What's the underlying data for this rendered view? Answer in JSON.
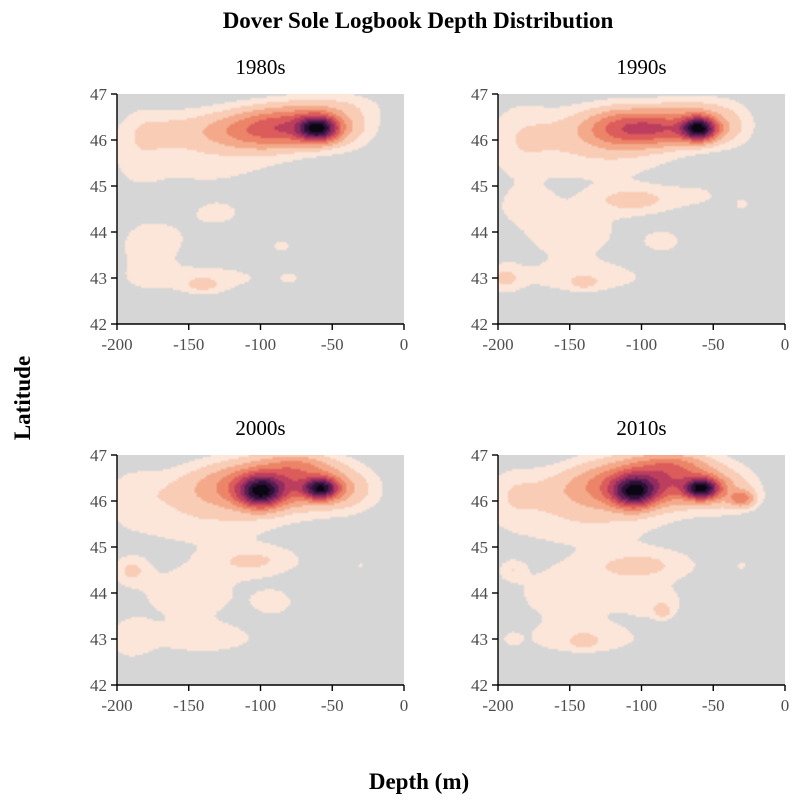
{
  "chart_data": {
    "type": "heatmap",
    "title": "Dover Sole Logbook Depth Distribution",
    "xlabel": "Depth (m)",
    "ylabel": "Latitude",
    "xlim": [
      -200,
      0
    ],
    "ylim": [
      42,
      47
    ],
    "x_ticks": [
      "-200",
      "-150",
      "-100",
      "-50",
      "0"
    ],
    "y_ticks": [
      "42",
      "43",
      "44",
      "45",
      "46",
      "47"
    ],
    "background_color": "#d6d6d6",
    "color_levels": [
      "#fce6da",
      "#f8ccb5",
      "#f4a98a",
      "#ec8468",
      "#dc5c5c",
      "#bc3e5e",
      "#902c60",
      "#5a1e54",
      "#2c1038",
      "#0a0612"
    ],
    "panels": [
      {
        "title": "1980s",
        "blobs": [
          {
            "x": -60,
            "y": 46.25,
            "sx": 9,
            "sy": 0.18,
            "a": 1.0
          },
          {
            "x": -75,
            "y": 46.3,
            "sx": 22,
            "sy": 0.28,
            "a": 0.45
          },
          {
            "x": -105,
            "y": 46.2,
            "sx": 22,
            "sy": 0.3,
            "a": 0.3
          },
          {
            "x": -145,
            "y": 46.2,
            "sx": 22,
            "sy": 0.3,
            "a": 0.1
          },
          {
            "x": -175,
            "y": 46.2,
            "sx": 15,
            "sy": 0.3,
            "a": 0.06
          },
          {
            "x": -185,
            "y": 45.8,
            "sx": 12,
            "sy": 0.6,
            "a": 0.05
          },
          {
            "x": -40,
            "y": 46.3,
            "sx": 15,
            "sy": 0.35,
            "a": 0.08
          },
          {
            "x": -50,
            "y": 46.75,
            "sx": 25,
            "sy": 0.2,
            "a": 0.06
          },
          {
            "x": -140,
            "y": 45.5,
            "sx": 40,
            "sy": 0.4,
            "a": 0.06
          },
          {
            "x": -130,
            "y": 44.4,
            "sx": 20,
            "sy": 0.3,
            "a": 0.05
          },
          {
            "x": -170,
            "y": 43.8,
            "sx": 18,
            "sy": 0.3,
            "a": 0.05
          },
          {
            "x": -140,
            "y": 43.0,
            "sx": 40,
            "sy": 0.25,
            "a": 0.06
          },
          {
            "x": -140,
            "y": 42.85,
            "sx": 9,
            "sy": 0.12,
            "a": 0.1
          },
          {
            "x": -180,
            "y": 43.5,
            "sx": 12,
            "sy": 0.5,
            "a": 0.05
          },
          {
            "x": -85,
            "y": 43.7,
            "sx": 8,
            "sy": 0.15,
            "a": 0.05
          },
          {
            "x": -80,
            "y": 43.0,
            "sx": 5,
            "sy": 0.1,
            "a": 0.04
          }
        ]
      },
      {
        "title": "1990s",
        "blobs": [
          {
            "x": -60,
            "y": 46.25,
            "sx": 8,
            "sy": 0.17,
            "a": 1.0
          },
          {
            "x": -85,
            "y": 46.25,
            "sx": 22,
            "sy": 0.25,
            "a": 0.45
          },
          {
            "x": -115,
            "y": 46.25,
            "sx": 18,
            "sy": 0.3,
            "a": 0.3
          },
          {
            "x": -150,
            "y": 46.2,
            "sx": 25,
            "sy": 0.35,
            "a": 0.08
          },
          {
            "x": -185,
            "y": 46.0,
            "sx": 15,
            "sy": 0.6,
            "a": 0.06
          },
          {
            "x": -40,
            "y": 46.3,
            "sx": 12,
            "sy": 0.3,
            "a": 0.1
          },
          {
            "x": -65,
            "y": 46.7,
            "sx": 20,
            "sy": 0.2,
            "a": 0.08
          },
          {
            "x": -130,
            "y": 45.6,
            "sx": 40,
            "sy": 0.4,
            "a": 0.06
          },
          {
            "x": -105,
            "y": 44.7,
            "sx": 20,
            "sy": 0.2,
            "a": 0.12
          },
          {
            "x": -180,
            "y": 44.6,
            "sx": 12,
            "sy": 0.25,
            "a": 0.07
          },
          {
            "x": -150,
            "y": 44.0,
            "sx": 30,
            "sy": 0.5,
            "a": 0.06
          },
          {
            "x": -195,
            "y": 43.0,
            "sx": 8,
            "sy": 0.2,
            "a": 0.1
          },
          {
            "x": -140,
            "y": 43.0,
            "sx": 35,
            "sy": 0.25,
            "a": 0.06
          },
          {
            "x": -140,
            "y": 42.9,
            "sx": 7,
            "sy": 0.1,
            "a": 0.08
          },
          {
            "x": -85,
            "y": 43.8,
            "sx": 10,
            "sy": 0.18,
            "a": 0.06
          },
          {
            "x": -30,
            "y": 44.6,
            "sx": 4,
            "sy": 0.12,
            "a": 0.05
          },
          {
            "x": -60,
            "y": 44.8,
            "sx": 15,
            "sy": 0.2,
            "a": 0.04
          }
        ]
      },
      {
        "title": "2000s",
        "blobs": [
          {
            "x": -58,
            "y": 46.27,
            "sx": 8,
            "sy": 0.15,
            "a": 0.85
          },
          {
            "x": -100,
            "y": 46.2,
            "sx": 10,
            "sy": 0.22,
            "a": 0.85
          },
          {
            "x": -80,
            "y": 46.4,
            "sx": 25,
            "sy": 0.35,
            "a": 0.45
          },
          {
            "x": -120,
            "y": 46.3,
            "sx": 20,
            "sy": 0.35,
            "a": 0.2
          },
          {
            "x": -155,
            "y": 46.2,
            "sx": 25,
            "sy": 0.35,
            "a": 0.08
          },
          {
            "x": -190,
            "y": 46.1,
            "sx": 12,
            "sy": 0.4,
            "a": 0.05
          },
          {
            "x": -40,
            "y": 46.2,
            "sx": 15,
            "sy": 0.3,
            "a": 0.1
          },
          {
            "x": -75,
            "y": 46.8,
            "sx": 15,
            "sy": 0.15,
            "a": 0.1
          },
          {
            "x": -140,
            "y": 45.5,
            "sx": 40,
            "sy": 0.35,
            "a": 0.06
          },
          {
            "x": -105,
            "y": 44.7,
            "sx": 22,
            "sy": 0.22,
            "a": 0.1
          },
          {
            "x": -190,
            "y": 44.5,
            "sx": 8,
            "sy": 0.2,
            "a": 0.1
          },
          {
            "x": -150,
            "y": 44.0,
            "sx": 30,
            "sy": 0.5,
            "a": 0.06
          },
          {
            "x": -190,
            "y": 43.0,
            "sx": 10,
            "sy": 0.3,
            "a": 0.07
          },
          {
            "x": -140,
            "y": 43.0,
            "sx": 30,
            "sy": 0.25,
            "a": 0.06
          },
          {
            "x": -90,
            "y": 43.8,
            "sx": 12,
            "sy": 0.25,
            "a": 0.05
          },
          {
            "x": -30,
            "y": 44.6,
            "sx": 4,
            "sy": 0.1,
            "a": 0.04
          }
        ]
      },
      {
        "title": "2010s",
        "blobs": [
          {
            "x": -58,
            "y": 46.27,
            "sx": 8,
            "sy": 0.15,
            "a": 0.85
          },
          {
            "x": -105,
            "y": 46.2,
            "sx": 10,
            "sy": 0.22,
            "a": 0.75
          },
          {
            "x": -85,
            "y": 46.45,
            "sx": 25,
            "sy": 0.35,
            "a": 0.45
          },
          {
            "x": -125,
            "y": 46.3,
            "sx": 20,
            "sy": 0.35,
            "a": 0.2
          },
          {
            "x": -160,
            "y": 46.2,
            "sx": 25,
            "sy": 0.35,
            "a": 0.08
          },
          {
            "x": -190,
            "y": 46.1,
            "sx": 12,
            "sy": 0.4,
            "a": 0.05
          },
          {
            "x": -30,
            "y": 46.05,
            "sx": 6,
            "sy": 0.12,
            "a": 0.25
          },
          {
            "x": -40,
            "y": 46.2,
            "sx": 15,
            "sy": 0.3,
            "a": 0.1
          },
          {
            "x": -80,
            "y": 46.8,
            "sx": 15,
            "sy": 0.15,
            "a": 0.1
          },
          {
            "x": -140,
            "y": 45.5,
            "sx": 40,
            "sy": 0.35,
            "a": 0.06
          },
          {
            "x": -100,
            "y": 44.6,
            "sx": 25,
            "sy": 0.25,
            "a": 0.1
          },
          {
            "x": -190,
            "y": 44.5,
            "sx": 6,
            "sy": 0.15,
            "a": 0.07
          },
          {
            "x": -150,
            "y": 44.0,
            "sx": 30,
            "sy": 0.5,
            "a": 0.06
          },
          {
            "x": -140,
            "y": 43.0,
            "sx": 30,
            "sy": 0.25,
            "a": 0.06
          },
          {
            "x": -140,
            "y": 42.95,
            "sx": 6,
            "sy": 0.1,
            "a": 0.08
          },
          {
            "x": -90,
            "y": 43.8,
            "sx": 15,
            "sy": 0.25,
            "a": 0.06
          },
          {
            "x": -190,
            "y": 43.0,
            "sx": 4,
            "sy": 0.1,
            "a": 0.05
          },
          {
            "x": -30,
            "y": 44.6,
            "sx": 4,
            "sy": 0.1,
            "a": 0.04
          },
          {
            "x": -85,
            "y": 43.6,
            "sx": 4,
            "sy": 0.1,
            "a": 0.1
          }
        ]
      }
    ]
  }
}
